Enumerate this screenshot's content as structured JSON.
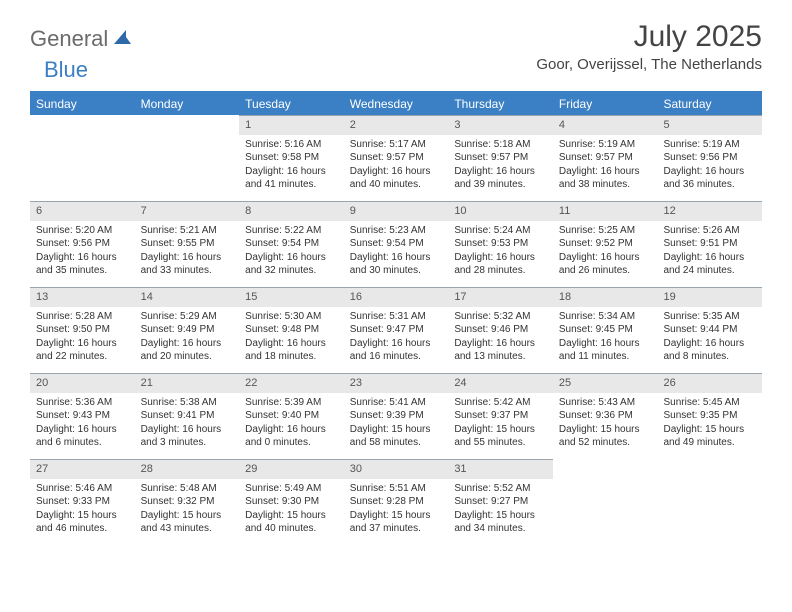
{
  "brand": {
    "text1": "General",
    "text2": "Blue"
  },
  "title": "July 2025",
  "location": "Goor, Overijssel, The Netherlands",
  "colors": {
    "header_bar": "#3b7fc4",
    "day_number_bg": "#e8e8e8",
    "day_number_border": "#9aa4ad",
    "text": "#333333",
    "background": "#ffffff"
  },
  "typography": {
    "title_fontsize": 30,
    "location_fontsize": 15,
    "dow_fontsize": 12,
    "daynum_fontsize": 11,
    "body_fontsize": 10
  },
  "days_of_week": [
    "Sunday",
    "Monday",
    "Tuesday",
    "Wednesday",
    "Thursday",
    "Friday",
    "Saturday"
  ],
  "weeks": [
    [
      null,
      null,
      {
        "n": "1",
        "sunrise": "Sunrise: 5:16 AM",
        "sunset": "Sunset: 9:58 PM",
        "daylight": "Daylight: 16 hours and 41 minutes."
      },
      {
        "n": "2",
        "sunrise": "Sunrise: 5:17 AM",
        "sunset": "Sunset: 9:57 PM",
        "daylight": "Daylight: 16 hours and 40 minutes."
      },
      {
        "n": "3",
        "sunrise": "Sunrise: 5:18 AM",
        "sunset": "Sunset: 9:57 PM",
        "daylight": "Daylight: 16 hours and 39 minutes."
      },
      {
        "n": "4",
        "sunrise": "Sunrise: 5:19 AM",
        "sunset": "Sunset: 9:57 PM",
        "daylight": "Daylight: 16 hours and 38 minutes."
      },
      {
        "n": "5",
        "sunrise": "Sunrise: 5:19 AM",
        "sunset": "Sunset: 9:56 PM",
        "daylight": "Daylight: 16 hours and 36 minutes."
      }
    ],
    [
      {
        "n": "6",
        "sunrise": "Sunrise: 5:20 AM",
        "sunset": "Sunset: 9:56 PM",
        "daylight": "Daylight: 16 hours and 35 minutes."
      },
      {
        "n": "7",
        "sunrise": "Sunrise: 5:21 AM",
        "sunset": "Sunset: 9:55 PM",
        "daylight": "Daylight: 16 hours and 33 minutes."
      },
      {
        "n": "8",
        "sunrise": "Sunrise: 5:22 AM",
        "sunset": "Sunset: 9:54 PM",
        "daylight": "Daylight: 16 hours and 32 minutes."
      },
      {
        "n": "9",
        "sunrise": "Sunrise: 5:23 AM",
        "sunset": "Sunset: 9:54 PM",
        "daylight": "Daylight: 16 hours and 30 minutes."
      },
      {
        "n": "10",
        "sunrise": "Sunrise: 5:24 AM",
        "sunset": "Sunset: 9:53 PM",
        "daylight": "Daylight: 16 hours and 28 minutes."
      },
      {
        "n": "11",
        "sunrise": "Sunrise: 5:25 AM",
        "sunset": "Sunset: 9:52 PM",
        "daylight": "Daylight: 16 hours and 26 minutes."
      },
      {
        "n": "12",
        "sunrise": "Sunrise: 5:26 AM",
        "sunset": "Sunset: 9:51 PM",
        "daylight": "Daylight: 16 hours and 24 minutes."
      }
    ],
    [
      {
        "n": "13",
        "sunrise": "Sunrise: 5:28 AM",
        "sunset": "Sunset: 9:50 PM",
        "daylight": "Daylight: 16 hours and 22 minutes."
      },
      {
        "n": "14",
        "sunrise": "Sunrise: 5:29 AM",
        "sunset": "Sunset: 9:49 PM",
        "daylight": "Daylight: 16 hours and 20 minutes."
      },
      {
        "n": "15",
        "sunrise": "Sunrise: 5:30 AM",
        "sunset": "Sunset: 9:48 PM",
        "daylight": "Daylight: 16 hours and 18 minutes."
      },
      {
        "n": "16",
        "sunrise": "Sunrise: 5:31 AM",
        "sunset": "Sunset: 9:47 PM",
        "daylight": "Daylight: 16 hours and 16 minutes."
      },
      {
        "n": "17",
        "sunrise": "Sunrise: 5:32 AM",
        "sunset": "Sunset: 9:46 PM",
        "daylight": "Daylight: 16 hours and 13 minutes."
      },
      {
        "n": "18",
        "sunrise": "Sunrise: 5:34 AM",
        "sunset": "Sunset: 9:45 PM",
        "daylight": "Daylight: 16 hours and 11 minutes."
      },
      {
        "n": "19",
        "sunrise": "Sunrise: 5:35 AM",
        "sunset": "Sunset: 9:44 PM",
        "daylight": "Daylight: 16 hours and 8 minutes."
      }
    ],
    [
      {
        "n": "20",
        "sunrise": "Sunrise: 5:36 AM",
        "sunset": "Sunset: 9:43 PM",
        "daylight": "Daylight: 16 hours and 6 minutes."
      },
      {
        "n": "21",
        "sunrise": "Sunrise: 5:38 AM",
        "sunset": "Sunset: 9:41 PM",
        "daylight": "Daylight: 16 hours and 3 minutes."
      },
      {
        "n": "22",
        "sunrise": "Sunrise: 5:39 AM",
        "sunset": "Sunset: 9:40 PM",
        "daylight": "Daylight: 16 hours and 0 minutes."
      },
      {
        "n": "23",
        "sunrise": "Sunrise: 5:41 AM",
        "sunset": "Sunset: 9:39 PM",
        "daylight": "Daylight: 15 hours and 58 minutes."
      },
      {
        "n": "24",
        "sunrise": "Sunrise: 5:42 AM",
        "sunset": "Sunset: 9:37 PM",
        "daylight": "Daylight: 15 hours and 55 minutes."
      },
      {
        "n": "25",
        "sunrise": "Sunrise: 5:43 AM",
        "sunset": "Sunset: 9:36 PM",
        "daylight": "Daylight: 15 hours and 52 minutes."
      },
      {
        "n": "26",
        "sunrise": "Sunrise: 5:45 AM",
        "sunset": "Sunset: 9:35 PM",
        "daylight": "Daylight: 15 hours and 49 minutes."
      }
    ],
    [
      {
        "n": "27",
        "sunrise": "Sunrise: 5:46 AM",
        "sunset": "Sunset: 9:33 PM",
        "daylight": "Daylight: 15 hours and 46 minutes."
      },
      {
        "n": "28",
        "sunrise": "Sunrise: 5:48 AM",
        "sunset": "Sunset: 9:32 PM",
        "daylight": "Daylight: 15 hours and 43 minutes."
      },
      {
        "n": "29",
        "sunrise": "Sunrise: 5:49 AM",
        "sunset": "Sunset: 9:30 PM",
        "daylight": "Daylight: 15 hours and 40 minutes."
      },
      {
        "n": "30",
        "sunrise": "Sunrise: 5:51 AM",
        "sunset": "Sunset: 9:28 PM",
        "daylight": "Daylight: 15 hours and 37 minutes."
      },
      {
        "n": "31",
        "sunrise": "Sunrise: 5:52 AM",
        "sunset": "Sunset: 9:27 PM",
        "daylight": "Daylight: 15 hours and 34 minutes."
      },
      null,
      null
    ]
  ]
}
